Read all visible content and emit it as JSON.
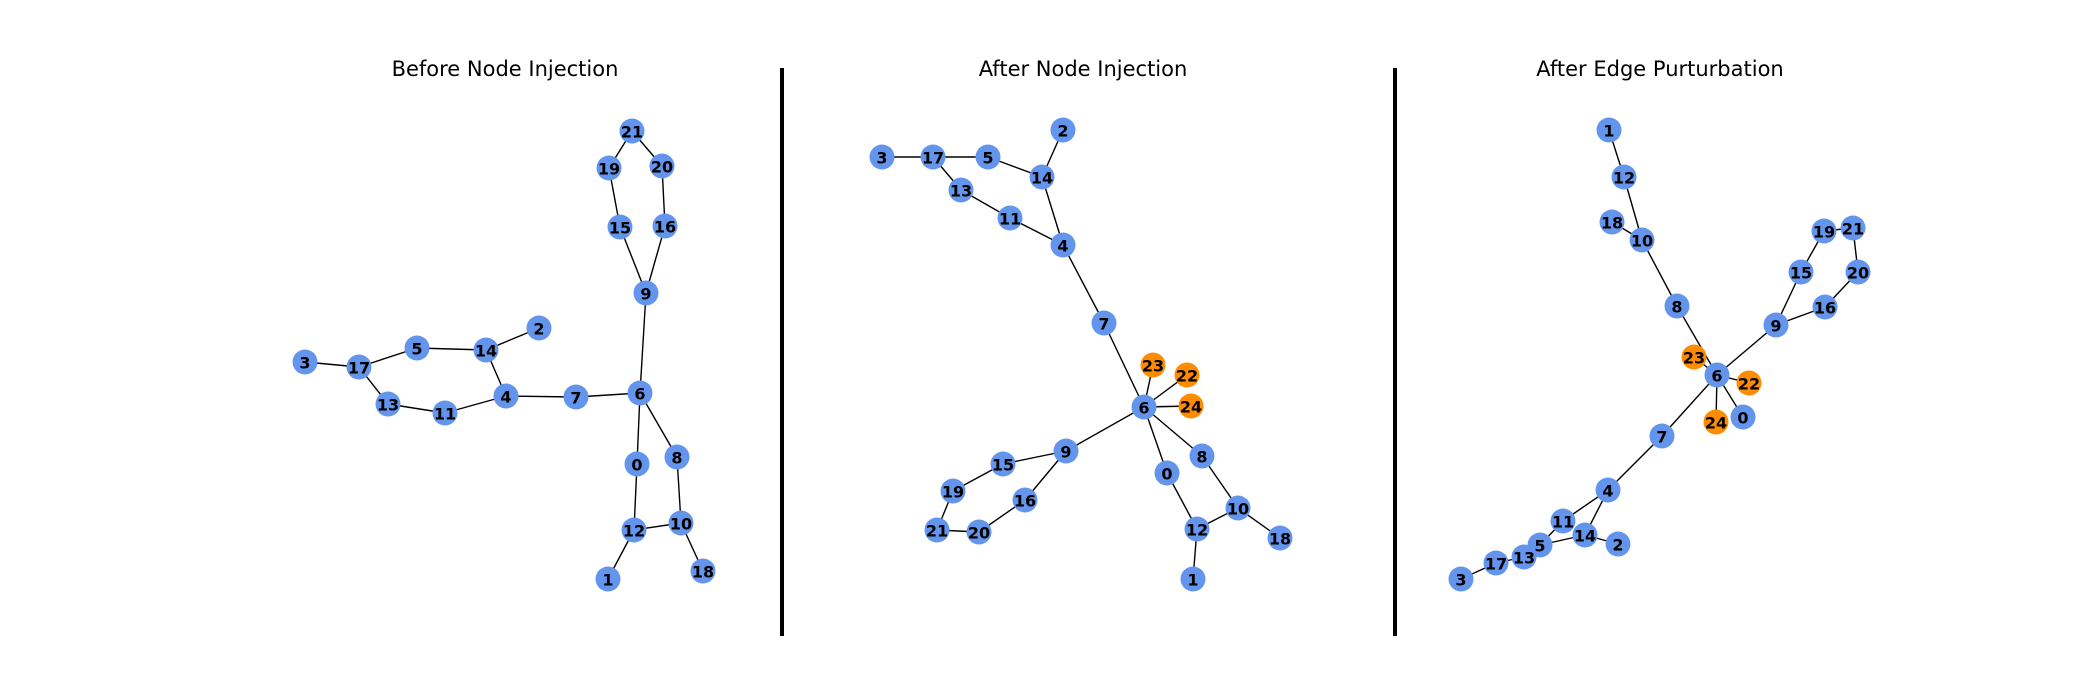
{
  "colors": {
    "original_node": "#6495ED",
    "injected_node": "#FF8C00"
  },
  "panels": [
    {
      "title": "Before Node Injection",
      "injected": [],
      "edges": [
        [
          21,
          19
        ],
        [
          21,
          20
        ],
        [
          19,
          15
        ],
        [
          20,
          16
        ],
        [
          15,
          9
        ],
        [
          16,
          9
        ],
        [
          9,
          6
        ],
        [
          6,
          7
        ],
        [
          6,
          0
        ],
        [
          6,
          8
        ],
        [
          7,
          4
        ],
        [
          4,
          14
        ],
        [
          4,
          11
        ],
        [
          14,
          2
        ],
        [
          14,
          5
        ],
        [
          5,
          17
        ],
        [
          17,
          3
        ],
        [
          17,
          13
        ],
        [
          13,
          11
        ],
        [
          0,
          12
        ],
        [
          8,
          10
        ],
        [
          12,
          10
        ],
        [
          12,
          1
        ],
        [
          10,
          18
        ]
      ]
    },
    {
      "title": "After Node Injection",
      "injected": [
        22,
        23,
        24
      ],
      "edges": [
        [
          3,
          17
        ],
        [
          17,
          5
        ],
        [
          17,
          13
        ],
        [
          13,
          11
        ],
        [
          5,
          14
        ],
        [
          14,
          2
        ],
        [
          14,
          4
        ],
        [
          11,
          4
        ],
        [
          4,
          7
        ],
        [
          7,
          6
        ],
        [
          6,
          23
        ],
        [
          6,
          22
        ],
        [
          6,
          24
        ],
        [
          6,
          9
        ],
        [
          6,
          8
        ],
        [
          6,
          0
        ],
        [
          9,
          15
        ],
        [
          9,
          16
        ],
        [
          15,
          19
        ],
        [
          19,
          21
        ],
        [
          21,
          20
        ],
        [
          16,
          20
        ],
        [
          0,
          12
        ],
        [
          8,
          10
        ],
        [
          12,
          10
        ],
        [
          12,
          1
        ],
        [
          10,
          18
        ]
      ]
    },
    {
      "title": "After Edge Purturbation",
      "injected": [
        22,
        23,
        24
      ],
      "edges": [
        [
          1,
          12
        ],
        [
          12,
          10
        ],
        [
          18,
          10
        ],
        [
          10,
          8
        ],
        [
          8,
          6
        ],
        [
          6,
          23
        ],
        [
          6,
          22
        ],
        [
          6,
          24
        ],
        [
          6,
          0
        ],
        [
          6,
          9
        ],
        [
          6,
          7
        ],
        [
          9,
          15
        ],
        [
          9,
          16
        ],
        [
          15,
          19
        ],
        [
          19,
          21
        ],
        [
          21,
          20
        ],
        [
          16,
          20
        ],
        [
          7,
          4
        ],
        [
          4,
          11
        ],
        [
          4,
          14
        ],
        [
          11,
          5
        ],
        [
          14,
          5
        ],
        [
          14,
          2
        ],
        [
          5,
          13
        ],
        [
          13,
          17
        ],
        [
          17,
          3
        ]
      ]
    }
  ]
}
